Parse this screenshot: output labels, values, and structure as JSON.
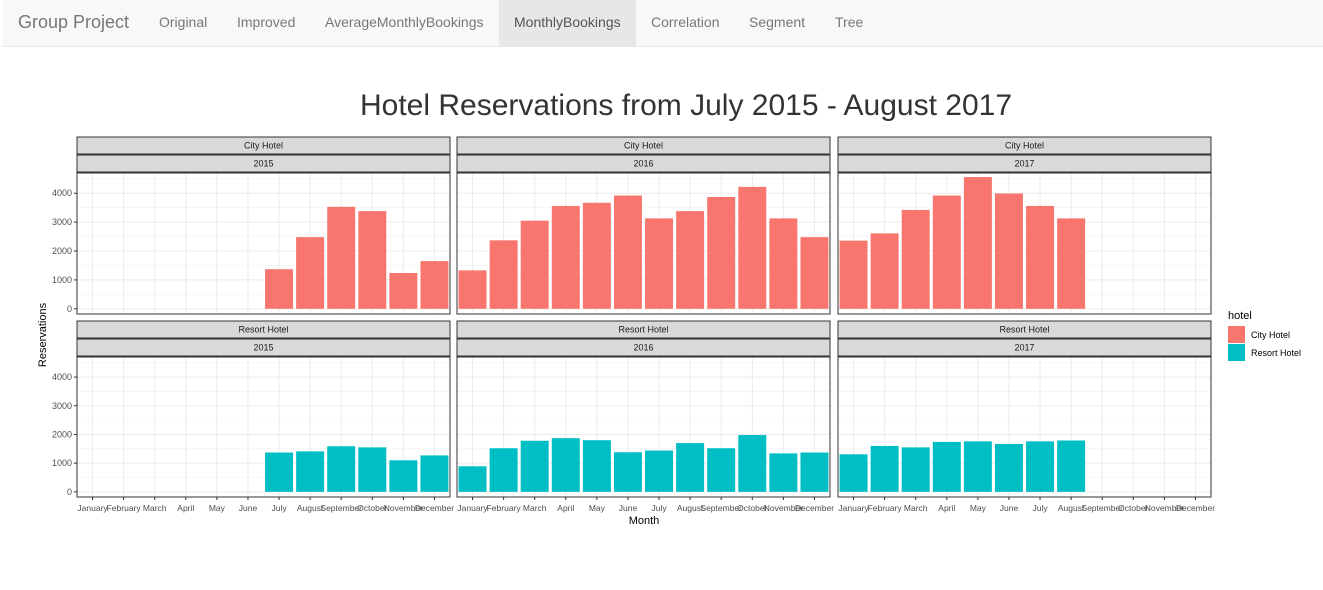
{
  "navbar": {
    "brand": "Group Project",
    "items": [
      {
        "label": "Original",
        "active": false
      },
      {
        "label": "Improved",
        "active": false
      },
      {
        "label": "AverageMonthlyBookings",
        "active": false
      },
      {
        "label": "MonthlyBookings",
        "active": true
      },
      {
        "label": "Correlation",
        "active": false
      },
      {
        "label": "Segment",
        "active": false
      },
      {
        "label": "Tree",
        "active": false
      }
    ]
  },
  "chart_data": {
    "type": "bar",
    "title": "Hotel Reservations from July 2015 - August 2017",
    "xlabel": "Month",
    "ylabel": "Reservations",
    "ylim": [
      0,
      4700
    ],
    "yticks": [
      0,
      1000,
      2000,
      3000,
      4000
    ],
    "grid": true,
    "legend_position": "right",
    "legend_title": "hotel",
    "categories": [
      "January",
      "February",
      "March",
      "April",
      "May",
      "June",
      "July",
      "August",
      "September",
      "October",
      "November",
      "December"
    ],
    "series_colors": {
      "City Hotel": "#F8766D",
      "Resort Hotel": "#00BFC4"
    },
    "panels": [
      {
        "hotel": "City Hotel",
        "year": "2015",
        "values": [
          null,
          null,
          null,
          null,
          null,
          null,
          1370,
          2480,
          3530,
          3380,
          1240,
          1650
        ]
      },
      {
        "hotel": "City Hotel",
        "year": "2016",
        "values": [
          1330,
          2370,
          3050,
          3560,
          3670,
          3920,
          3130,
          3380,
          3870,
          4220,
          3130,
          2480
        ]
      },
      {
        "hotel": "City Hotel",
        "year": "2017",
        "values": [
          2360,
          2610,
          3420,
          3920,
          4560,
          3990,
          3560,
          3130,
          null,
          null,
          null,
          null
        ]
      },
      {
        "hotel": "Resort Hotel",
        "year": "2015",
        "values": [
          null,
          null,
          null,
          null,
          null,
          null,
          1370,
          1410,
          1590,
          1550,
          1100,
          1270
        ]
      },
      {
        "hotel": "Resort Hotel",
        "year": "2016",
        "values": [
          890,
          1520,
          1780,
          1870,
          1800,
          1380,
          1440,
          1700,
          1520,
          1980,
          1340,
          1370
        ]
      },
      {
        "hotel": "Resort Hotel",
        "year": "2017",
        "values": [
          1310,
          1600,
          1550,
          1740,
          1760,
          1670,
          1760,
          1790,
          null,
          null,
          null,
          null
        ]
      }
    ]
  }
}
